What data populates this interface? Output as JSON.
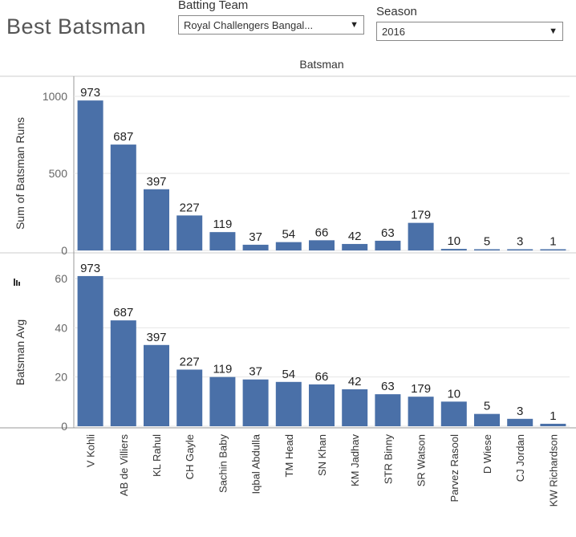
{
  "header": {
    "title": "Best Batsman",
    "batting_team_label": "Batting Team",
    "batting_team_value": "Royal Challengers Bangal...",
    "season_label": "Season",
    "season_value": "2016"
  },
  "colors": {
    "bar": "#4a70a8",
    "grid": "#e6e6e6",
    "axis": "#999999"
  },
  "chart_data": [
    {
      "type": "bar",
      "title": "Batsman",
      "xlabel": "",
      "ylabel": "Sum of Batsman Runs",
      "ylim": [
        0,
        1000
      ],
      "yticks": [
        0,
        500,
        1000
      ],
      "grid": true,
      "categories": [
        "V Kohli",
        "AB de Villiers",
        "KL Rahul",
        "CH Gayle",
        "Sachin Baby",
        "Iqbal Abdulla",
        "TM Head",
        "SN Khan",
        "KM Jadhav",
        "STR Binny",
        "SR Watson",
        "Parvez Rasool",
        "D Wiese",
        "CJ Jordan",
        "KW Richardson"
      ],
      "values": [
        973,
        687,
        397,
        227,
        119,
        37,
        54,
        66,
        42,
        63,
        179,
        10,
        5,
        3,
        1
      ],
      "data_labels": [
        "973",
        "687",
        "397",
        "227",
        "119",
        "37",
        "54",
        "66",
        "42",
        "63",
        "179",
        "10",
        "5",
        "3",
        "1"
      ]
    },
    {
      "type": "bar",
      "ylabel": "Batsman Avg",
      "ylim": [
        0,
        60
      ],
      "yticks": [
        0,
        20,
        40,
        60
      ],
      "grid": true,
      "sort_icon": "sort-descending-icon",
      "categories": [
        "V Kohli",
        "AB de Villiers",
        "KL Rahul",
        "CH Gayle",
        "Sachin Baby",
        "Iqbal Abdulla",
        "TM Head",
        "SN Khan",
        "KM Jadhav",
        "STR Binny",
        "SR Watson",
        "Parvez Rasool",
        "D Wiese",
        "CJ Jordan",
        "KW Richardson"
      ],
      "values": [
        61,
        43,
        33,
        23,
        20,
        19,
        18,
        17,
        15,
        13,
        12,
        10,
        5,
        3,
        1
      ],
      "data_labels": [
        "973",
        "687",
        "397",
        "227",
        "119",
        "37",
        "54",
        "66",
        "42",
        "63",
        "179",
        "10",
        "5",
        "3",
        "1"
      ]
    }
  ]
}
